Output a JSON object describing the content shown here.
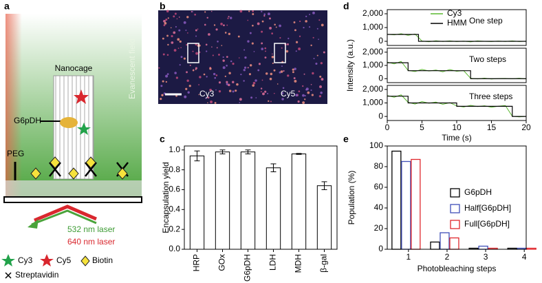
{
  "panels": [
    "a",
    "b",
    "c",
    "d",
    "e"
  ],
  "diagram": {
    "nanocage": "Nanocage",
    "enzyme": "G6pDH",
    "peg": "PEG",
    "field": "Evanescent field",
    "laser1": "532 nm laser",
    "laser2": "640 nm laser",
    "legend": [
      "Cy3",
      "Cy5",
      "Biotin",
      "Streptavidin"
    ]
  },
  "image": {
    "labels": [
      "Cy3",
      "Cy5"
    ]
  },
  "chart_data": [
    {
      "type": "bar",
      "ylabel": "Encapsulation yield",
      "categories": [
        "HRP",
        "GOx",
        "G6pDH",
        "LDH",
        "MDH",
        "β-gal"
      ],
      "values": [
        0.94,
        0.98,
        0.98,
        0.82,
        0.96,
        0.64
      ],
      "errors": [
        0.05,
        0.02,
        0.02,
        0.04,
        0.005,
        0.04
      ],
      "color": "#ffffff",
      "ylim": [
        0,
        1.04
      ],
      "yticks": [
        {
          "value": 0,
          "label": "0.0"
        },
        {
          "value": 0.2,
          "label": "0.2"
        },
        {
          "value": 0.4,
          "label": "0.4"
        },
        {
          "value": 0.6,
          "label": "0.6"
        },
        {
          "value": 0.8,
          "label": "0.8"
        },
        {
          "value": 1,
          "label": "1.0"
        }
      ]
    },
    {
      "type": "line",
      "annotation": "One step",
      "ylabel": "Intensity (a.u.)",
      "series": [
        {
          "name": "Cy3",
          "color": "#5ab82e",
          "x": [
            0,
            1,
            2,
            3,
            4,
            5,
            6,
            7,
            8,
            9,
            10,
            11,
            12,
            13,
            14,
            15,
            16,
            17,
            18,
            19,
            20
          ],
          "values": [
            510,
            470,
            550,
            440,
            530,
            20,
            -30,
            40,
            -10,
            30,
            -20,
            10,
            -40,
            30,
            0,
            -20,
            20,
            -10,
            30,
            -20,
            10
          ]
        },
        {
          "name": "HMM",
          "color": "#000000",
          "x": [
            0,
            4.5,
            4.5,
            20
          ],
          "values": [
            500,
            500,
            0,
            0
          ]
        }
      ],
      "xlim": [
        0,
        20
      ],
      "ylim": [
        -300,
        2300
      ],
      "yticks": [
        0,
        {
          "value": 1000,
          "label": "1,000"
        },
        {
          "value": 2000,
          "label": "2,000"
        }
      ]
    },
    {
      "type": "line",
      "annotation": "Two steps",
      "series": [
        {
          "color": "#5ab82e",
          "x": [
            0,
            1,
            2,
            3,
            4,
            5,
            6,
            7,
            8,
            9,
            10,
            11,
            12,
            13,
            14,
            15,
            16,
            17,
            18,
            19,
            20
          ],
          "values": [
            1250,
            1120,
            1300,
            620,
            540,
            700,
            580,
            650,
            520,
            690,
            560,
            610,
            30,
            -20,
            40,
            -30,
            10,
            20,
            -10,
            30,
            -20
          ]
        },
        {
          "color": "#000000",
          "x": [
            0,
            3,
            3,
            12,
            12,
            20
          ],
          "values": [
            1200,
            1200,
            600,
            600,
            0,
            0
          ]
        }
      ],
      "xlim": [
        0,
        20
      ],
      "ylim": [
        -300,
        2300
      ],
      "yticks": [
        0,
        {
          "value": 1000,
          "label": "1,000"
        },
        {
          "value": 2000,
          "label": "2,000"
        }
      ]
    },
    {
      "type": "line",
      "annotation": "Three steps",
      "xlabel": "Time (s)",
      "series": [
        {
          "color": "#5ab82e",
          "x": [
            0,
            1,
            2,
            3,
            4,
            5,
            6,
            7,
            8,
            9,
            10,
            11,
            12,
            13,
            14,
            15,
            16,
            17,
            18,
            19,
            20
          ],
          "values": [
            1550,
            1420,
            1600,
            1050,
            920,
            1100,
            980,
            1060,
            900,
            1020,
            780,
            700,
            820,
            730,
            790,
            680,
            760,
            810,
            20,
            -30,
            10
          ]
        },
        {
          "color": "#000000",
          "x": [
            0,
            3,
            3,
            10,
            10,
            18,
            18,
            20
          ],
          "values": [
            1500,
            1500,
            1000,
            1000,
            750,
            750,
            0,
            0
          ]
        }
      ],
      "xlim": [
        0,
        20
      ],
      "ylim": [
        -300,
        2300
      ],
      "xticks": [
        0,
        5,
        10,
        15,
        20
      ],
      "yticks": [
        0,
        {
          "value": 1000,
          "label": "1,000"
        },
        {
          "value": 2000,
          "label": "2,000"
        }
      ]
    },
    {
      "type": "grouped_bar",
      "ylabel": "Population (%)",
      "xlabel": "Photobleaching steps",
      "x": [
        1,
        2,
        3,
        4
      ],
      "xlim": [
        0.45,
        4.05
      ],
      "xticks": [
        1,
        2,
        3,
        4
      ],
      "ylim": [
        0,
        100
      ],
      "yticks": [
        0,
        20,
        40,
        60,
        80,
        100
      ],
      "series": [
        {
          "name": "G6pDH",
          "color": "#000000",
          "values": [
            95,
            7,
            1,
            1
          ]
        },
        {
          "name": "Half[G6pDH]",
          "color": "#3f4fb8",
          "values": [
            85,
            16,
            3,
            1
          ]
        },
        {
          "name": "Full[G6pDH]",
          "color": "#e0262b",
          "values": [
            87,
            11,
            1,
            1
          ]
        }
      ]
    }
  ]
}
